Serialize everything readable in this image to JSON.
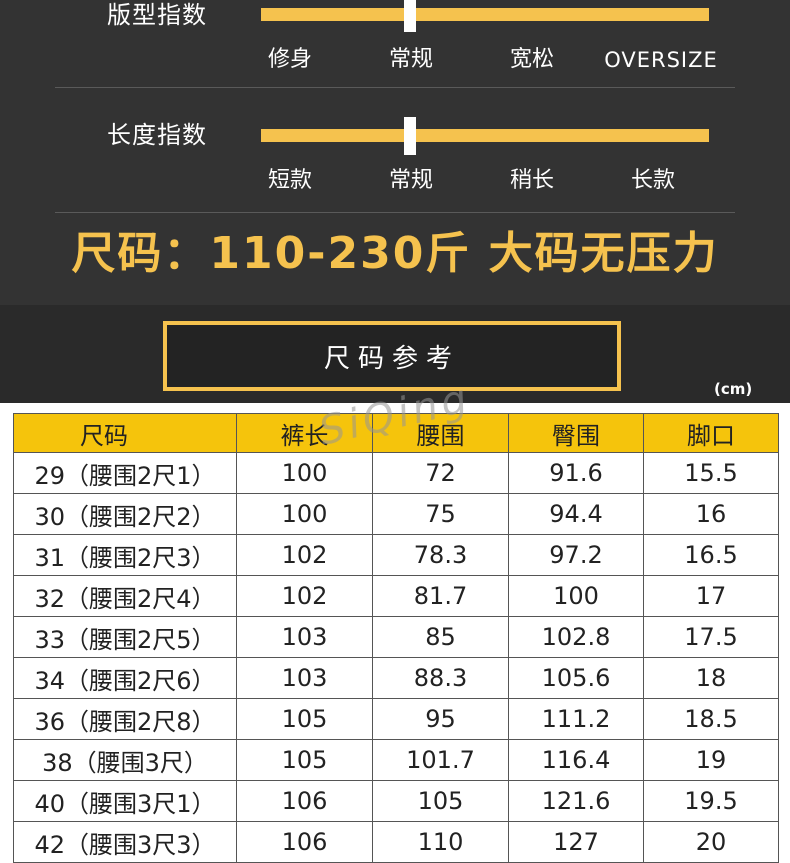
{
  "fit_index": {
    "label": "版型指数",
    "options": [
      "修身",
      "常规",
      "宽松",
      "OVERSIZE"
    ],
    "selected": "常规"
  },
  "length_index": {
    "label": "长度指数",
    "options": [
      "短款",
      "常规",
      "稍长",
      "长款"
    ],
    "selected": "常规"
  },
  "size_range": "尺码：110-230斤 大码无压力",
  "reference": {
    "title": "尺码参考",
    "unit": "(cm)"
  },
  "watermark": "SiQing",
  "colors": {
    "accent": "#f5c24e",
    "table_header": "#f5c40c",
    "dark_bg": "#333333"
  },
  "table": {
    "headers": [
      "尺码",
      "裤长",
      "腰围",
      "臀围",
      "脚口"
    ],
    "rows": [
      [
        "29（腰围2尺1）",
        "100",
        "72",
        "91.6",
        "15.5"
      ],
      [
        "30（腰围2尺2）",
        "100",
        "75",
        "94.4",
        "16"
      ],
      [
        "31（腰围2尺3）",
        "102",
        "78.3",
        "97.2",
        "16.5"
      ],
      [
        "32（腰围2尺4）",
        "102",
        "81.7",
        "100",
        "17"
      ],
      [
        "33（腰围2尺5）",
        "103",
        "85",
        "102.8",
        "17.5"
      ],
      [
        "34（腰围2尺6）",
        "103",
        "88.3",
        "105.6",
        "18"
      ],
      [
        "36（腰围2尺8）",
        "105",
        "95",
        "111.2",
        "18.5"
      ],
      [
        "38（腰围3尺）",
        "105",
        "101.7",
        "116.4",
        "19"
      ],
      [
        "40（腰围3尺1）",
        "106",
        "105",
        "121.6",
        "19.5"
      ],
      [
        "42（腰围3尺3）",
        "106",
        "110",
        "127",
        "20"
      ]
    ]
  }
}
